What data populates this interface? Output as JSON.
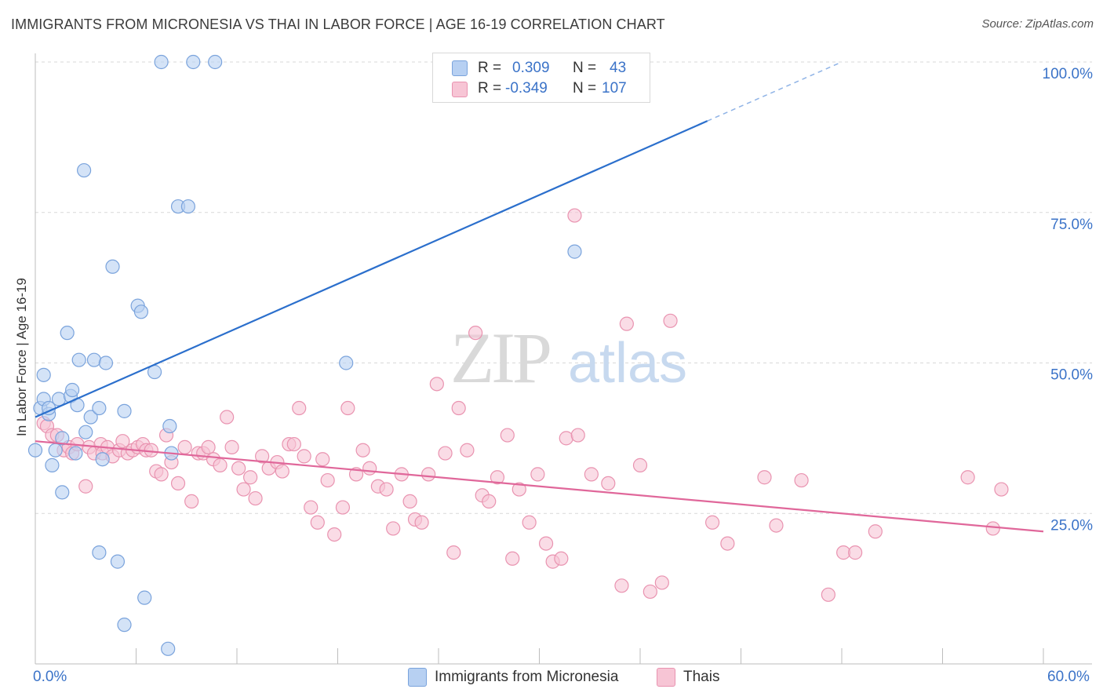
{
  "header": {
    "title": "IMMIGRANTS FROM MICRONESIA VS THAI IN LABOR FORCE | AGE 16-19 CORRELATION CHART",
    "source": "Source: ZipAtlas.com"
  },
  "watermark": {
    "zip": "ZIP",
    "atlas": "atlas"
  },
  "legend": {
    "rows": [
      {
        "r_label": "R =",
        "r_value": "0.309",
        "n_label": "N =",
        "n_value": "43"
      },
      {
        "r_label": "R =",
        "r_value": "-0.349",
        "n_label": "N =",
        "n_value": "107"
      }
    ]
  },
  "bottom_legend": {
    "series1": "Immigrants from Micronesia",
    "series2": "Thais"
  },
  "colors": {
    "blue_fill": "#b7d0f2",
    "blue_stroke": "#7aa3dc",
    "blue_line": "#2b6fcc",
    "pink_fill": "#f7c5d5",
    "pink_stroke": "#e993b0",
    "pink_line": "#e0679a",
    "axis_label": "#3b73c8",
    "grid": "#d9d9d9"
  },
  "chart_data": {
    "type": "scatter",
    "title": "IMMIGRANTS FROM MICRONESIA VS THAI IN LABOR FORCE | AGE 16-19 CORRELATION CHART",
    "xlabel": "",
    "ylabel": "In Labor Force | Age 16-19",
    "xlim": [
      0,
      60
    ],
    "ylim": [
      0,
      100
    ],
    "x_tick_labels": [
      "0.0%",
      "60.0%"
    ],
    "y_tick_values": [
      25,
      50,
      75,
      100
    ],
    "y_tick_labels": [
      "25.0%",
      "50.0%",
      "75.0%",
      "100.0%"
    ],
    "grid": true,
    "legend_position": "top-center",
    "series": [
      {
        "name": "Immigrants from Micronesia",
        "r": 0.309,
        "n": 43,
        "trend": {
          "x0": 0,
          "y0": 41.0,
          "x1": 40,
          "y1": 90.2,
          "dashed_to_x": 48,
          "dashed_to_y": 100
        },
        "points": [
          [
            0.0,
            35.5
          ],
          [
            0.3,
            42.5
          ],
          [
            0.5,
            48.0
          ],
          [
            0.5,
            44.0
          ],
          [
            0.8,
            41.5
          ],
          [
            0.8,
            42.5
          ],
          [
            1.0,
            33.0
          ],
          [
            1.2,
            35.5
          ],
          [
            1.4,
            44.0
          ],
          [
            1.6,
            37.5
          ],
          [
            1.6,
            28.5
          ],
          [
            1.9,
            55.0
          ],
          [
            2.1,
            44.5
          ],
          [
            2.2,
            45.5
          ],
          [
            2.4,
            35.0
          ],
          [
            2.5,
            43.0
          ],
          [
            2.6,
            50.5
          ],
          [
            2.9,
            82.0
          ],
          [
            3.0,
            38.5
          ],
          [
            3.3,
            41.0
          ],
          [
            3.5,
            50.5
          ],
          [
            3.8,
            18.5
          ],
          [
            3.8,
            42.5
          ],
          [
            4.0,
            34.0
          ],
          [
            4.2,
            50.0
          ],
          [
            4.6,
            66.0
          ],
          [
            4.9,
            17.0
          ],
          [
            5.3,
            42.0
          ],
          [
            5.3,
            6.5
          ],
          [
            6.1,
            59.5
          ],
          [
            6.3,
            58.5
          ],
          [
            6.5,
            11.0
          ],
          [
            7.1,
            48.5
          ],
          [
            7.5,
            100.0
          ],
          [
            7.9,
            2.5
          ],
          [
            8.0,
            39.5
          ],
          [
            8.1,
            35.0
          ],
          [
            8.5,
            76.0
          ],
          [
            9.1,
            76.0
          ],
          [
            9.4,
            100.0
          ],
          [
            10.7,
            100.0
          ],
          [
            18.5,
            50.0
          ],
          [
            32.1,
            68.5
          ]
        ]
      },
      {
        "name": "Thais",
        "r": -0.349,
        "n": 107,
        "trend": {
          "x0": 0,
          "y0": 37.0,
          "x1": 60,
          "y1": 22.0
        },
        "points": [
          [
            0.5,
            40.0
          ],
          [
            0.7,
            39.5
          ],
          [
            1.0,
            38.0
          ],
          [
            1.3,
            38.0
          ],
          [
            1.7,
            35.5
          ],
          [
            2.0,
            36.0
          ],
          [
            2.2,
            35.0
          ],
          [
            2.5,
            36.5
          ],
          [
            3.0,
            29.5
          ],
          [
            3.2,
            36.0
          ],
          [
            3.5,
            35.0
          ],
          [
            3.9,
            36.5
          ],
          [
            4.0,
            35.0
          ],
          [
            4.3,
            36.0
          ],
          [
            4.6,
            34.5
          ],
          [
            5.0,
            35.5
          ],
          [
            5.2,
            37.0
          ],
          [
            5.5,
            35.0
          ],
          [
            5.8,
            35.5
          ],
          [
            6.1,
            36.0
          ],
          [
            6.4,
            36.5
          ],
          [
            6.6,
            35.5
          ],
          [
            6.9,
            35.5
          ],
          [
            7.2,
            32.0
          ],
          [
            7.5,
            31.5
          ],
          [
            7.8,
            38.0
          ],
          [
            8.1,
            33.5
          ],
          [
            8.5,
            30.0
          ],
          [
            8.9,
            36.0
          ],
          [
            9.3,
            27.0
          ],
          [
            9.7,
            35.0
          ],
          [
            10.0,
            35.0
          ],
          [
            10.3,
            36.0
          ],
          [
            10.6,
            34.0
          ],
          [
            11.0,
            33.0
          ],
          [
            11.4,
            41.0
          ],
          [
            11.7,
            36.0
          ],
          [
            12.1,
            32.5
          ],
          [
            12.4,
            29.0
          ],
          [
            12.8,
            31.0
          ],
          [
            13.1,
            27.5
          ],
          [
            13.5,
            34.5
          ],
          [
            13.9,
            32.5
          ],
          [
            14.4,
            33.5
          ],
          [
            14.7,
            32.0
          ],
          [
            15.1,
            36.5
          ],
          [
            15.4,
            36.5
          ],
          [
            15.7,
            42.5
          ],
          [
            16.0,
            34.5
          ],
          [
            16.4,
            26.0
          ],
          [
            16.8,
            23.5
          ],
          [
            17.1,
            34.0
          ],
          [
            17.4,
            30.5
          ],
          [
            17.8,
            21.5
          ],
          [
            18.3,
            26.0
          ],
          [
            18.6,
            42.5
          ],
          [
            19.1,
            31.5
          ],
          [
            19.5,
            35.5
          ],
          [
            19.9,
            32.5
          ],
          [
            20.4,
            29.5
          ],
          [
            20.9,
            29.0
          ],
          [
            21.3,
            22.5
          ],
          [
            21.8,
            31.5
          ],
          [
            22.3,
            27.0
          ],
          [
            22.6,
            24.0
          ],
          [
            23.0,
            23.5
          ],
          [
            23.4,
            31.5
          ],
          [
            23.9,
            46.5
          ],
          [
            24.4,
            35.0
          ],
          [
            24.9,
            18.5
          ],
          [
            25.2,
            42.5
          ],
          [
            25.7,
            35.5
          ],
          [
            26.2,
            55.0
          ],
          [
            26.6,
            28.0
          ],
          [
            27.0,
            27.0
          ],
          [
            27.5,
            31.0
          ],
          [
            28.1,
            38.0
          ],
          [
            28.4,
            17.5
          ],
          [
            28.8,
            29.0
          ],
          [
            29.4,
            23.5
          ],
          [
            29.9,
            31.5
          ],
          [
            30.4,
            20.0
          ],
          [
            30.8,
            17.0
          ],
          [
            31.3,
            17.5
          ],
          [
            31.6,
            37.5
          ],
          [
            32.1,
            74.5
          ],
          [
            32.3,
            38.0
          ],
          [
            33.1,
            31.5
          ],
          [
            34.1,
            30.0
          ],
          [
            34.9,
            13.0
          ],
          [
            35.2,
            56.5
          ],
          [
            36.0,
            33.0
          ],
          [
            36.6,
            12.0
          ],
          [
            37.3,
            13.5
          ],
          [
            37.8,
            57.0
          ],
          [
            40.3,
            23.5
          ],
          [
            41.2,
            20.0
          ],
          [
            43.4,
            31.0
          ],
          [
            44.1,
            23.0
          ],
          [
            45.6,
            30.5
          ],
          [
            47.2,
            11.5
          ],
          [
            48.1,
            18.5
          ],
          [
            48.8,
            18.5
          ],
          [
            50.0,
            22.0
          ],
          [
            55.5,
            31.0
          ],
          [
            57.0,
            22.5
          ],
          [
            57.5,
            29.0
          ]
        ]
      }
    ]
  }
}
